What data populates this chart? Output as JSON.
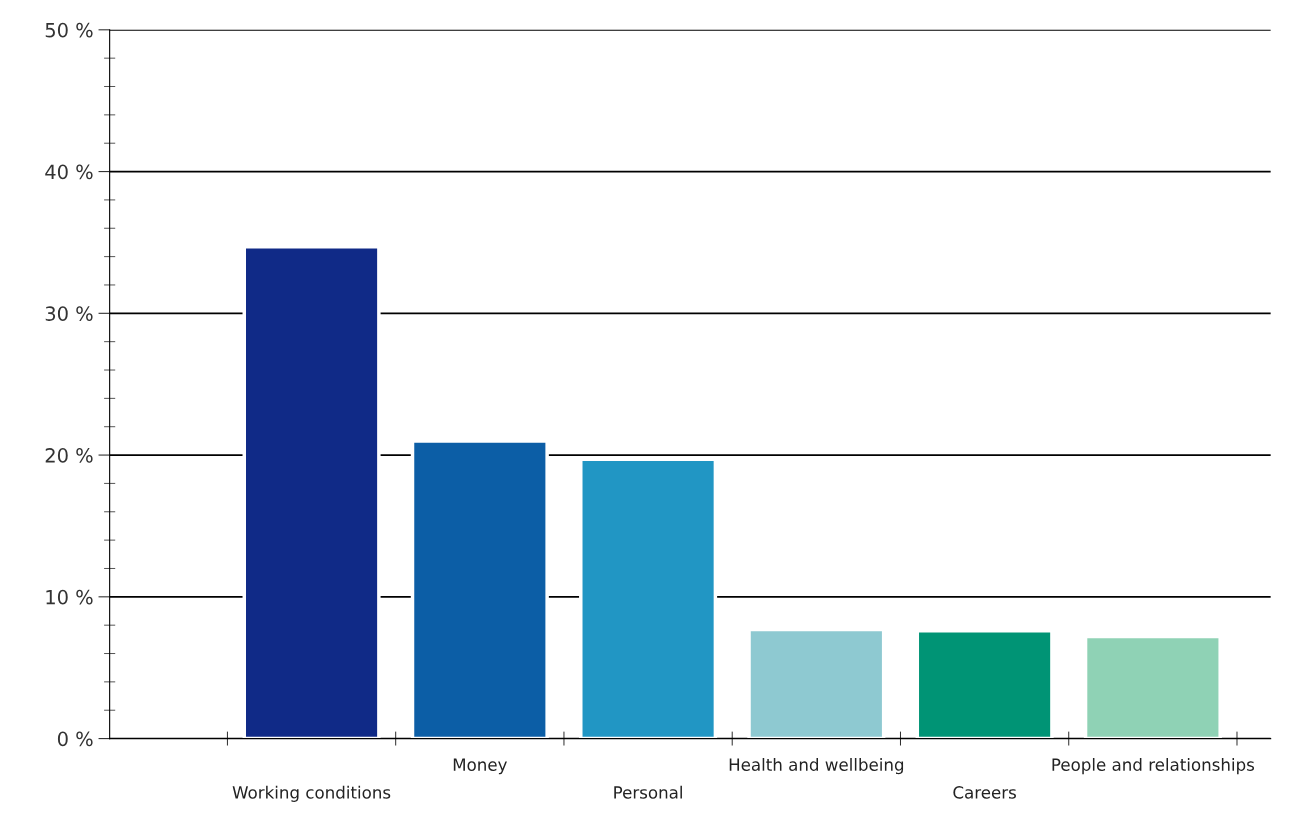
{
  "chart_data": {
    "type": "bar",
    "categories": [
      "Working conditions",
      "Money",
      "Personal",
      "Health and wellbeing",
      "Careers",
      "People and relationships"
    ],
    "values": [
      34.7,
      21.0,
      19.7,
      7.7,
      7.6,
      7.2
    ],
    "colors": [
      "#102a87",
      "#0c5ea6",
      "#2196c4",
      "#8ec9d1",
      "#009475",
      "#8fd2b5"
    ],
    "ylim": [
      0,
      50
    ],
    "yticks": [
      {
        "value": 0,
        "label": "0 %"
      },
      {
        "value": 2,
        "label": null
      },
      {
        "value": 4,
        "label": null
      },
      {
        "value": 6,
        "label": null
      },
      {
        "value": 8,
        "label": null
      },
      {
        "value": 10,
        "label": "10 %"
      },
      {
        "value": 12,
        "label": null
      },
      {
        "value": 14,
        "label": null
      },
      {
        "value": 16,
        "label": null
      },
      {
        "value": 18,
        "label": null
      },
      {
        "value": 20,
        "label": "20 %"
      },
      {
        "value": 22,
        "label": null
      },
      {
        "value": 24,
        "label": null
      },
      {
        "value": 26,
        "label": null
      },
      {
        "value": 28,
        "label": null
      },
      {
        "value": 30,
        "label": "30 %"
      },
      {
        "value": 32,
        "label": null
      },
      {
        "value": 34,
        "label": null
      },
      {
        "value": 36,
        "label": null
      },
      {
        "value": 38,
        "label": null
      },
      {
        "value": 40,
        "label": "40 %"
      },
      {
        "value": 42,
        "label": null
      },
      {
        "value": 44,
        "label": null
      },
      {
        "value": 46,
        "label": null
      },
      {
        "value": 48,
        "label": null
      },
      {
        "value": 50,
        "label": "50 %"
      }
    ],
    "grid": "y"
  }
}
